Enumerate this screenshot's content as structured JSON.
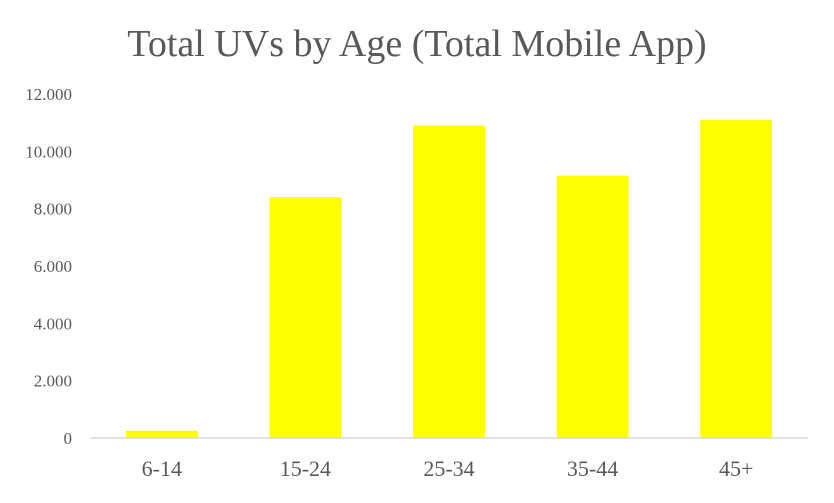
{
  "chart_data": {
    "type": "bar",
    "title": "Total UVs by Age (Total Mobile App)",
    "xlabel": "",
    "ylabel": "",
    "categories": [
      "6-14",
      "15-24",
      "25-34",
      "35-44",
      "45+"
    ],
    "values": [
      250,
      8400,
      10900,
      9150,
      11100
    ],
    "ylim": [
      0,
      12000
    ],
    "y_ticks": [
      0,
      2000,
      4000,
      6000,
      8000,
      10000,
      12000
    ],
    "y_tick_labels": [
      "0",
      "2.000",
      "4.000",
      "6.000",
      "8.000",
      "10.000",
      "12.000"
    ],
    "grid": false,
    "legend": "none",
    "bar_color": "#FFFF00",
    "axis_color": "#D9D9D9",
    "text_color": "#595959"
  }
}
